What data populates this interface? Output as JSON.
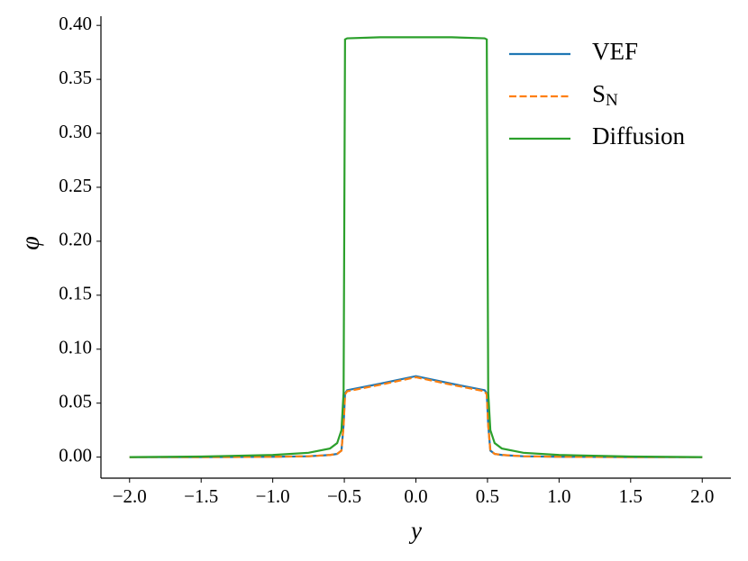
{
  "chart_data": {
    "type": "line",
    "xlabel": "y",
    "ylabel": "φ",
    "x": [
      -2.0,
      -1.5,
      -1.0,
      -0.75,
      -0.6,
      -0.55,
      -0.52,
      -0.505,
      -0.495,
      -0.48,
      -0.25,
      0.0,
      0.25,
      0.48,
      0.495,
      0.505,
      0.52,
      0.55,
      0.6,
      0.75,
      1.0,
      1.5,
      2.0
    ],
    "series": [
      {
        "name": "VEF",
        "color": "#1f77b4",
        "style": "solid",
        "values": [
          0,
          0,
          0.0003,
          0.0008,
          0.002,
          0.003,
          0.006,
          0.03,
          0.059,
          0.062,
          0.068,
          0.075,
          0.068,
          0.062,
          0.059,
          0.03,
          0.006,
          0.003,
          0.002,
          0.0008,
          0.0003,
          0,
          0
        ]
      },
      {
        "name": "S_N",
        "color": "#ff7f0e",
        "style": "dashed",
        "values": [
          0,
          0,
          0.0003,
          0.0008,
          0.002,
          0.003,
          0.006,
          0.029,
          0.058,
          0.061,
          0.067,
          0.074,
          0.067,
          0.061,
          0.058,
          0.029,
          0.006,
          0.003,
          0.002,
          0.0008,
          0.0003,
          0,
          0
        ]
      },
      {
        "name": "Diffusion",
        "color": "#2ca02c",
        "style": "solid",
        "values": [
          0,
          0.0005,
          0.002,
          0.004,
          0.008,
          0.013,
          0.025,
          0.06,
          0.387,
          0.388,
          0.389,
          0.389,
          0.389,
          0.388,
          0.387,
          0.06,
          0.025,
          0.013,
          0.008,
          0.004,
          0.002,
          0.0005,
          0
        ]
      }
    ],
    "xlim": [
      -2.2,
      2.2
    ],
    "ylim": [
      -0.0195,
      0.4085
    ],
    "xticks": [
      {
        "value": -2.0,
        "label": "−2.0"
      },
      {
        "value": -1.5,
        "label": "−1.5"
      },
      {
        "value": -1.0,
        "label": "−1.0"
      },
      {
        "value": -0.5,
        "label": "−0.5"
      },
      {
        "value": 0.0,
        "label": "0.0"
      },
      {
        "value": 0.5,
        "label": "0.5"
      },
      {
        "value": 1.0,
        "label": "1.0"
      },
      {
        "value": 1.5,
        "label": "1.5"
      },
      {
        "value": 2.0,
        "label": "2.0"
      }
    ],
    "yticks": [
      {
        "value": 0,
        "label": "0.00"
      },
      {
        "value": 0.05,
        "label": "0.05"
      },
      {
        "value": 0.1,
        "label": "0.10"
      },
      {
        "value": 0.15,
        "label": "0.15"
      },
      {
        "value": 0.2,
        "label": "0.20"
      },
      {
        "value": 0.25,
        "label": "0.25"
      },
      {
        "value": 0.3,
        "label": "0.30"
      },
      {
        "value": 0.35,
        "label": "0.35"
      },
      {
        "value": 0.4,
        "label": "0.40"
      }
    ],
    "legend": "upper right",
    "grid": false
  }
}
